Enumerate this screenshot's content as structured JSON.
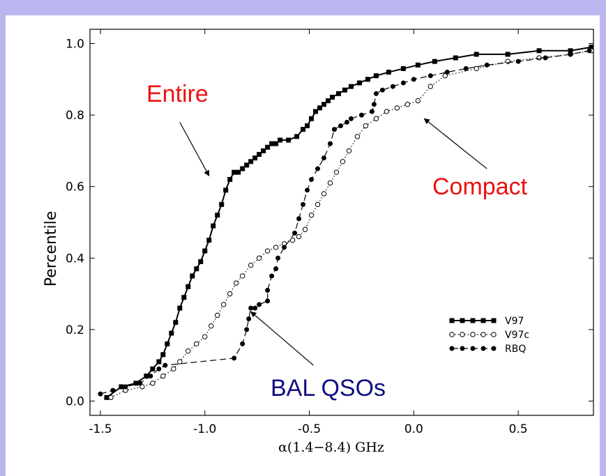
{
  "chart_data": {
    "type": "line",
    "xlabel": "α(1.4−8.4) GHz",
    "ylabel": "Percentile",
    "xlim": [
      -1.55,
      0.86
    ],
    "ylim": [
      -0.04,
      1.04
    ],
    "xticks": [
      -1.5,
      -1.0,
      -0.5,
      0.0,
      0.5
    ],
    "xtick_labels": [
      "-1.5",
      "-1.0",
      "-0.5",
      "0.0",
      "0.5"
    ],
    "yticks": [
      0.0,
      0.2,
      0.4,
      0.6,
      0.8,
      1.0
    ],
    "ytick_labels": [
      "0.0",
      "0.2",
      "0.4",
      "0.6",
      "0.8",
      "1.0"
    ],
    "grid": false,
    "legend_position": "lower-right",
    "series": [
      {
        "name": "V97",
        "linestyle": "solid",
        "marker": "square",
        "color": "#000000",
        "x": [
          -1.47,
          -1.4,
          -1.33,
          -1.28,
          -1.25,
          -1.22,
          -1.2,
          -1.18,
          -1.16,
          -1.14,
          -1.12,
          -1.1,
          -1.08,
          -1.06,
          -1.04,
          -1.02,
          -1.0,
          -0.98,
          -0.96,
          -0.94,
          -0.92,
          -0.9,
          -0.88,
          -0.86,
          -0.84,
          -0.82,
          -0.8,
          -0.78,
          -0.76,
          -0.74,
          -0.72,
          -0.7,
          -0.68,
          -0.66,
          -0.64,
          -0.6,
          -0.56,
          -0.53,
          -0.51,
          -0.49,
          -0.47,
          -0.45,
          -0.43,
          -0.41,
          -0.39,
          -0.36,
          -0.33,
          -0.3,
          -0.26,
          -0.22,
          -0.18,
          -0.12,
          -0.05,
          0.02,
          0.1,
          0.2,
          0.3,
          0.45,
          0.6,
          0.75,
          0.85
        ],
        "y": [
          0.01,
          0.04,
          0.05,
          0.07,
          0.09,
          0.11,
          0.13,
          0.16,
          0.19,
          0.22,
          0.26,
          0.29,
          0.32,
          0.35,
          0.37,
          0.39,
          0.42,
          0.45,
          0.49,
          0.52,
          0.55,
          0.59,
          0.62,
          0.64,
          0.64,
          0.65,
          0.66,
          0.67,
          0.68,
          0.69,
          0.7,
          0.71,
          0.72,
          0.72,
          0.73,
          0.73,
          0.74,
          0.76,
          0.77,
          0.79,
          0.81,
          0.82,
          0.83,
          0.84,
          0.85,
          0.86,
          0.87,
          0.88,
          0.89,
          0.9,
          0.91,
          0.92,
          0.93,
          0.94,
          0.95,
          0.96,
          0.97,
          0.97,
          0.98,
          0.98,
          0.99
        ]
      },
      {
        "name": "V97c",
        "linestyle": "dotted",
        "marker": "open-circle",
        "color": "#000000",
        "x": [
          -1.45,
          -1.38,
          -1.3,
          -1.25,
          -1.2,
          -1.15,
          -1.12,
          -1.08,
          -1.04,
          -1.0,
          -0.97,
          -0.94,
          -0.91,
          -0.88,
          -0.85,
          -0.82,
          -0.78,
          -0.74,
          -0.7,
          -0.66,
          -0.62,
          -0.58,
          -0.55,
          -0.52,
          -0.49,
          -0.46,
          -0.43,
          -0.4,
          -0.37,
          -0.34,
          -0.31,
          -0.27,
          -0.23,
          -0.18,
          -0.13,
          -0.08,
          -0.03,
          0.02,
          0.08,
          0.15,
          0.3,
          0.45,
          0.6,
          0.75,
          0.85
        ],
        "y": [
          0.01,
          0.03,
          0.04,
          0.05,
          0.07,
          0.09,
          0.11,
          0.14,
          0.16,
          0.18,
          0.21,
          0.24,
          0.27,
          0.3,
          0.33,
          0.35,
          0.38,
          0.4,
          0.42,
          0.43,
          0.44,
          0.45,
          0.46,
          0.48,
          0.52,
          0.55,
          0.58,
          0.61,
          0.64,
          0.67,
          0.7,
          0.74,
          0.77,
          0.79,
          0.81,
          0.82,
          0.83,
          0.84,
          0.88,
          0.91,
          0.93,
          0.95,
          0.96,
          0.97,
          0.98
        ]
      },
      {
        "name": "RBQ",
        "linestyle": "dashed",
        "marker": "filled-circle",
        "color": "#000000",
        "x": [
          -1.5,
          -1.44,
          -1.38,
          -1.31,
          -1.26,
          -1.22,
          -1.19,
          -0.86,
          -0.82,
          -0.8,
          -0.79,
          -0.78,
          -0.76,
          -0.74,
          -0.7,
          -0.7,
          -0.68,
          -0.66,
          -0.65,
          -0.62,
          -0.57,
          -0.55,
          -0.53,
          -0.51,
          -0.49,
          -0.46,
          -0.43,
          -0.4,
          -0.38,
          -0.35,
          -0.32,
          -0.3,
          -0.25,
          -0.2,
          -0.19,
          -0.18,
          -0.15,
          -0.1,
          -0.05,
          0.0,
          0.08,
          0.16,
          0.25,
          0.35,
          0.5,
          0.63,
          0.75,
          0.84
        ],
        "y": [
          0.02,
          0.03,
          0.04,
          0.05,
          0.07,
          0.09,
          0.1,
          0.12,
          0.16,
          0.2,
          0.23,
          0.26,
          0.26,
          0.27,
          0.28,
          0.31,
          0.35,
          0.37,
          0.4,
          0.43,
          0.47,
          0.51,
          0.55,
          0.59,
          0.62,
          0.65,
          0.68,
          0.72,
          0.76,
          0.77,
          0.78,
          0.79,
          0.8,
          0.81,
          0.83,
          0.86,
          0.87,
          0.88,
          0.89,
          0.9,
          0.91,
          0.92,
          0.93,
          0.94,
          0.95,
          0.96,
          0.97,
          0.98
        ]
      }
    ],
    "annotations": [
      {
        "text": "Entire",
        "color": "#ee1111",
        "target": "V97",
        "arrow_to": [
          -0.98,
          0.63
        ],
        "arrow_from": [
          -1.12,
          0.78
        ]
      },
      {
        "text": "Compact",
        "color": "#ee1111",
        "target": "V97c",
        "arrow_to": [
          0.05,
          0.79
        ],
        "arrow_from": [
          0.35,
          0.65
        ]
      },
      {
        "text": "BAL QSOs",
        "color": "#101080",
        "target": "RBQ",
        "arrow_to": [
          -0.78,
          0.25
        ],
        "arrow_from": [
          -0.48,
          0.1
        ]
      }
    ]
  }
}
